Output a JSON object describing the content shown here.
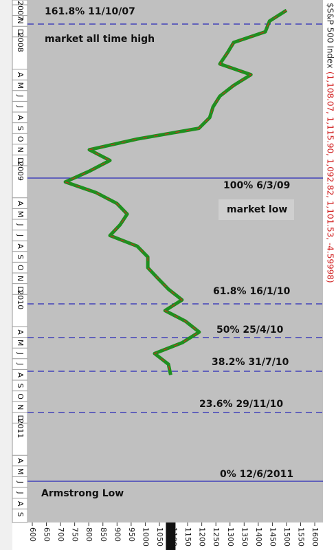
{
  "chart_data": {
    "type": "line",
    "title": "$S&P 500 Index",
    "subtitle": "(1,108.07, 1,115.90, 1,092.82, 1,101.53, -4.59998)",
    "current_label": "1101.5",
    "categories": [
      "2007",
      "N",
      "D",
      "2008",
      null,
      null,
      "A",
      "M",
      "J",
      "J",
      "A",
      "S",
      "O",
      "N",
      "D",
      "2009",
      null,
      null,
      "A",
      "M",
      "J",
      "J",
      "A",
      "S",
      "O",
      "N",
      "D",
      "2010",
      null,
      null,
      "A",
      "M",
      "J",
      "J",
      "A",
      "S",
      "O",
      "N",
      "D",
      "2011",
      null,
      null,
      "A",
      "M",
      "J",
      "J",
      "A",
      "S"
    ],
    "series": [
      {
        "color": "#1f8f1f",
        "values": [
          1500,
          1440,
          1425,
          1313,
          1290,
          1264,
          1374,
          1313,
          1264,
          1240,
          1228,
          1190,
          972,
          802,
          875,
          802,
          717,
          826,
          899,
          936,
          911,
          875,
          972,
          1009,
          1009,
          1045,
          1082,
          1130,
          1070,
          1143,
          1191,
          1130,
          1033,
          1082,
          1090,
          null,
          null,
          null,
          null,
          null,
          null,
          null,
          null,
          null,
          null,
          null,
          null,
          null
        ]
      }
    ],
    "xlim": [
      583,
      1629
    ],
    "xticks": [
      600,
      650,
      700,
      750,
      800,
      850,
      900,
      950,
      1000,
      1050,
      1100,
      1150,
      1200,
      1250,
      1300,
      1350,
      1400,
      1450,
      1500,
      1550,
      1600
    ],
    "annotations": [
      "161.8% 11/10/07",
      "market all time high",
      "100% 6/3/09",
      "market low",
      "61.8% 16/1/10",
      "50% 25/4/10",
      "38.2% 31/7/10",
      "23.6% 29/11/10",
      "0% 12/6/2011",
      "Armstrong Low"
    ]
  }
}
